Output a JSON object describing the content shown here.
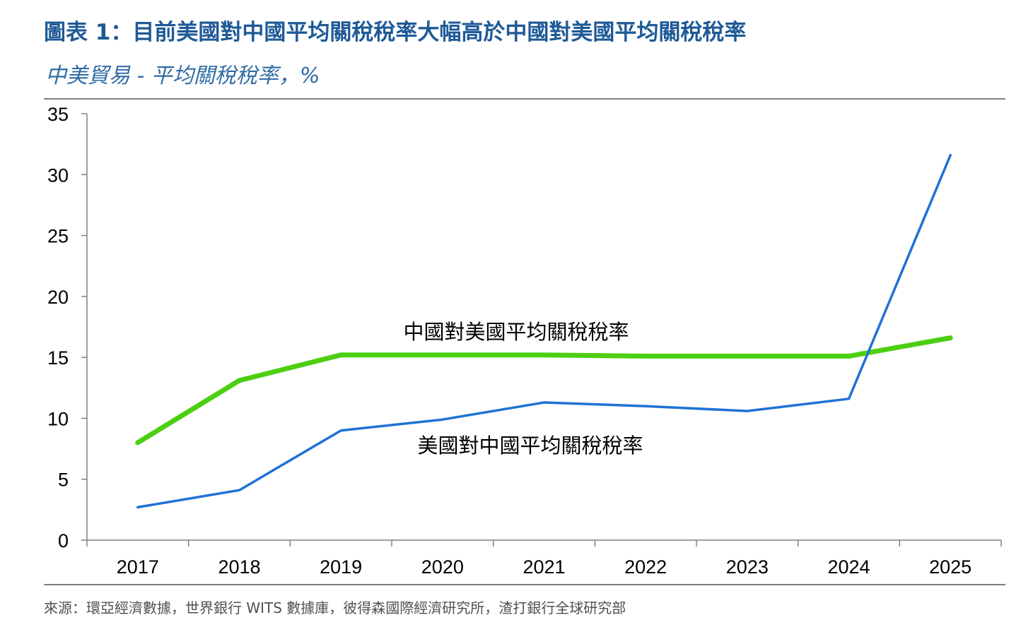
{
  "header": {
    "title": "圖表 1：目前美國對中國平均關稅稅率大幅高於中國對美國平均關稅稅率",
    "subtitle": "中美貿易 - 平均關稅稅率，%"
  },
  "footer": {
    "source": "來源：環亞經濟數據，世界銀行 WITS 數據庫，彼得森國際經濟研究所，渣打銀行全球研究部"
  },
  "chart_data": {
    "type": "line",
    "title": "圖表 1：目前美國對中國平均關稅稅率大幅高於中國對美國平均關稅稅率",
    "subtitle": "中美貿易 - 平均關稅稅率，%",
    "categories": [
      "2017",
      "2018",
      "2019",
      "2020",
      "2021",
      "2022",
      "2023",
      "2024",
      "2025"
    ],
    "ylim": [
      0,
      35
    ],
    "yticks": [
      0,
      5,
      10,
      15,
      20,
      25,
      30,
      35
    ],
    "grid": false,
    "series": [
      {
        "name": "中國對美國平均關稅稅率",
        "color": "#4ccf11",
        "values": [
          8.0,
          13.1,
          15.2,
          15.2,
          15.2,
          15.1,
          15.1,
          15.1,
          16.6
        ]
      },
      {
        "name": "美國對中國平均關稅稅率",
        "color": "#1f72d6",
        "values": [
          2.7,
          4.1,
          9.0,
          9.9,
          11.3,
          11.0,
          10.6,
          11.6,
          31.6
        ]
      }
    ]
  }
}
